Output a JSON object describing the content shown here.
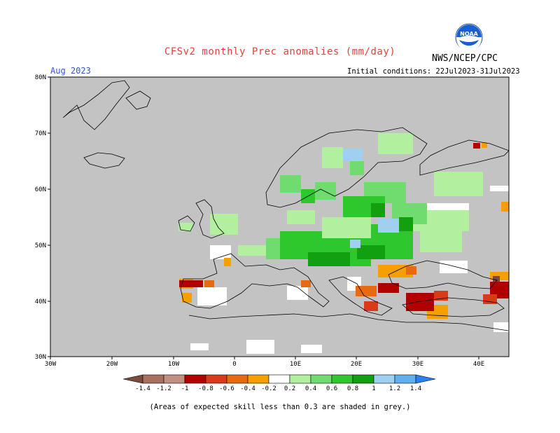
{
  "header": {
    "title": "CFSv2 monthly Prec anomalies (mm/day)",
    "month": "Aug 2023",
    "agency": "NWS/NCEP/CPC",
    "init": "Initial conditions: 22Jul2023-31Jul2023",
    "logo_text": "NOAA"
  },
  "axes": {
    "lat_labels": [
      "80N",
      "70N",
      "60N",
      "50N",
      "40N",
      "30N"
    ],
    "lon_labels": [
      "30W",
      "20W",
      "10W",
      "0",
      "10E",
      "20E",
      "30E",
      "40E"
    ]
  },
  "colorbar": {
    "labels": [
      "-1.4",
      "-1.2",
      "-1",
      "-0.8",
      "-0.6",
      "-0.4",
      "-0.2",
      "0.2",
      "0.4",
      "0.6",
      "0.8",
      "1",
      "1.2",
      "1.4"
    ],
    "colors": [
      "#7a4b3a",
      "#a87060",
      "#c09080",
      "#b00000",
      "#d83a1a",
      "#e86a10",
      "#f5a000",
      "#ffffff",
      "#b2f0a0",
      "#70dc70",
      "#2ec82e",
      "#10a010",
      "#a0d0f0",
      "#60b0f0",
      "#2a80f0"
    ]
  },
  "footer": "(Areas of expected skill less than 0.3 are shaded in grey.)",
  "colors": {
    "skill_grey": "#c3c3c3",
    "title_red": "#e0443c",
    "month_blue": "#3355cc"
  }
}
